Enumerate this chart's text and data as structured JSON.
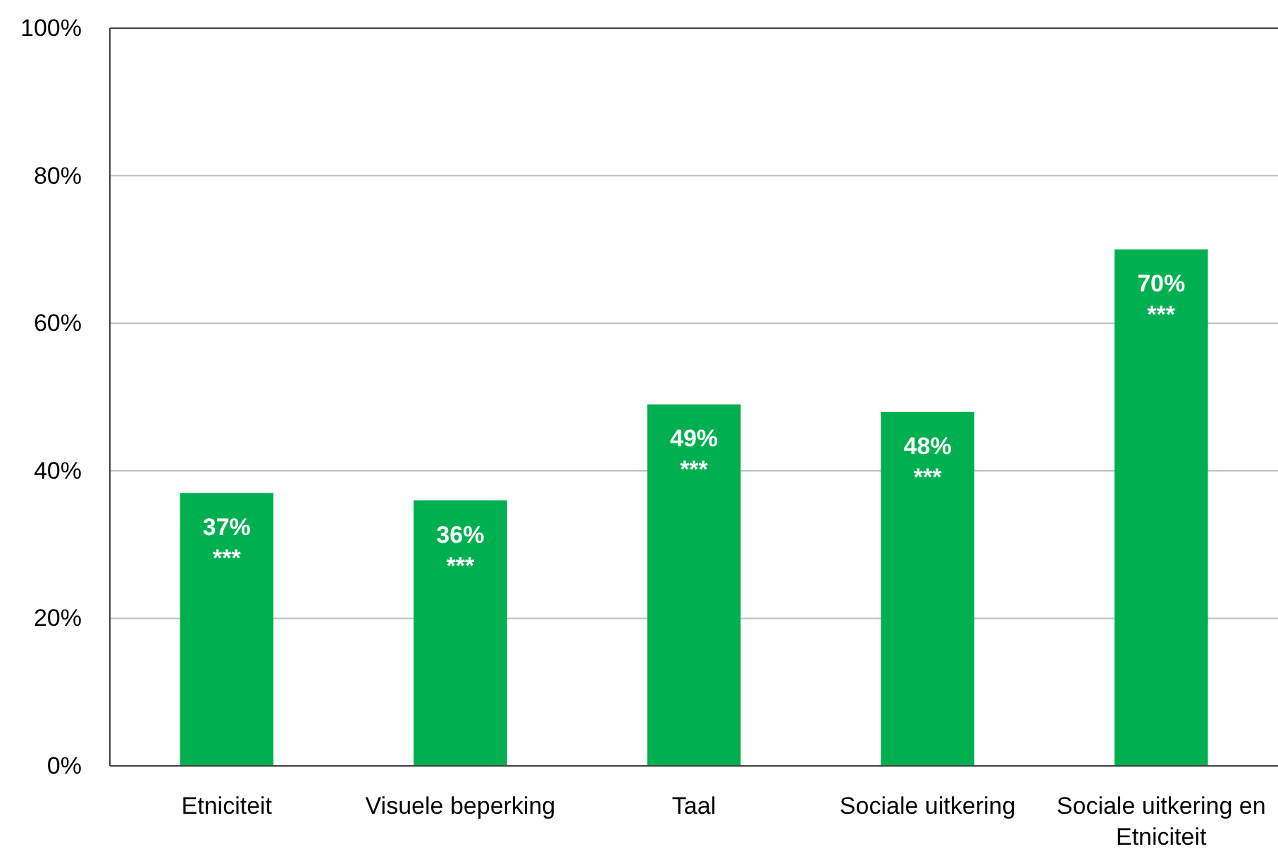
{
  "chart_data": {
    "type": "bar",
    "categories": [
      "Etniciteit",
      "Visuele beperking",
      "Taal",
      "Sociale uitkering",
      "Sociale uitkering en Etniciteit"
    ],
    "values": [
      37,
      36,
      49,
      48,
      70
    ],
    "color": "#00b050",
    "value_labels": [
      "37%",
      "36%",
      "49%",
      "48%",
      "70%"
    ],
    "annotations": [
      {
        "text": "***",
        "x": "Etniciteit",
        "y": 37
      },
      {
        "text": "***",
        "x": "Visuele beperking",
        "y": 36
      },
      {
        "text": "***",
        "x": "Taal",
        "y": 49
      },
      {
        "text": "***",
        "x": "Sociale uitkering",
        "y": 48
      },
      {
        "text": "***",
        "x": "Sociale uitkering en Etniciteit",
        "y": 70
      }
    ],
    "ylim": [
      0,
      100
    ],
    "yticks": [
      {
        "value": 0,
        "label": "0%"
      },
      {
        "value": 20,
        "label": "20%"
      },
      {
        "value": 40,
        "label": "40%"
      },
      {
        "value": 60,
        "label": "60%"
      },
      {
        "value": 80,
        "label": "80%"
      },
      {
        "value": 100,
        "label": "100%"
      }
    ],
    "grid": "y"
  }
}
